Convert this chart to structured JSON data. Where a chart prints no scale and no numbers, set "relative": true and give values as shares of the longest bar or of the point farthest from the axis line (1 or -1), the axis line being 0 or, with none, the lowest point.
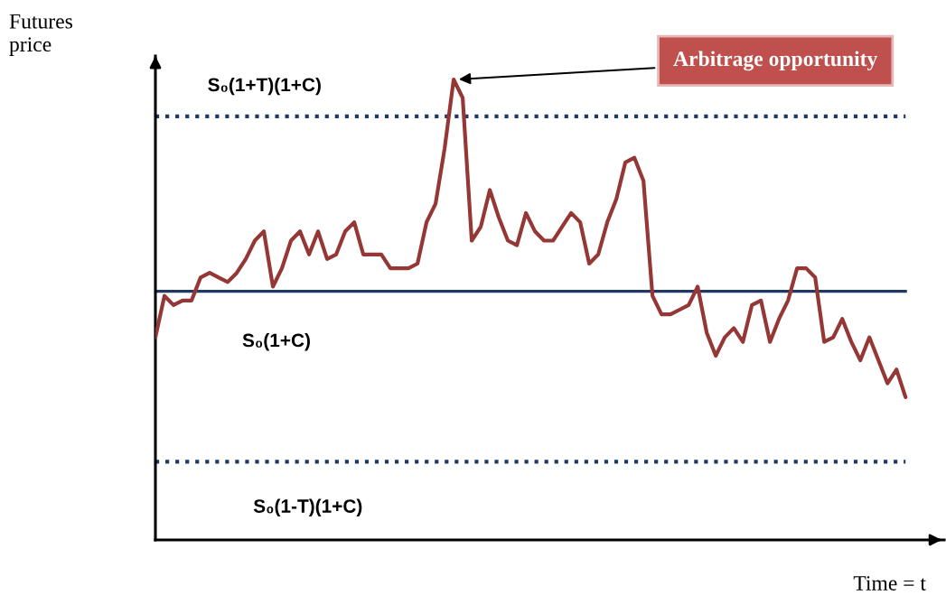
{
  "chart_data": {
    "type": "line",
    "relative": true,
    "xlabel": "Time = t",
    "ylabel": "Futures price",
    "color": "#953735",
    "line_style": "solid",
    "marker": "none",
    "categories": [
      null,
      null,
      null,
      null,
      null,
      null,
      null,
      null,
      null,
      null,
      null,
      null,
      null,
      null,
      null,
      null,
      null,
      null,
      null,
      null,
      null,
      null,
      null,
      null,
      null,
      null,
      null,
      null,
      null,
      null,
      null,
      null,
      null,
      null,
      null,
      null,
      null,
      null,
      null,
      null,
      null,
      null,
      null,
      null,
      null,
      null,
      null,
      null,
      null,
      null,
      null,
      null,
      null,
      null,
      null,
      null,
      null,
      null,
      null,
      null,
      null,
      null,
      null,
      null,
      null,
      null,
      null,
      null,
      null,
      null,
      null,
      null,
      null,
      null,
      null,
      null,
      null,
      null,
      null,
      null,
      null,
      null,
      null,
      null
    ],
    "values": [
      0.44,
      0.53,
      0.51,
      0.52,
      0.52,
      0.57,
      0.58,
      0.57,
      0.56,
      0.58,
      0.61,
      0.65,
      0.67,
      0.55,
      0.59,
      0.65,
      0.67,
      0.62,
      0.67,
      0.61,
      0.62,
      0.67,
      0.69,
      0.62,
      0.62,
      0.62,
      0.59,
      0.59,
      0.59,
      0.6,
      0.69,
      0.73,
      0.85,
      1.0,
      0.96,
      0.65,
      0.68,
      0.76,
      0.7,
      0.65,
      0.64,
      0.71,
      0.67,
      0.65,
      0.65,
      0.68,
      0.71,
      0.69,
      0.6,
      0.62,
      0.69,
      0.74,
      0.82,
      0.83,
      0.78,
      0.53,
      0.49,
      0.49,
      0.5,
      0.51,
      0.55,
      0.45,
      0.4,
      0.44,
      0.46,
      0.43,
      0.51,
      0.52,
      0.43,
      0.48,
      0.52,
      0.59,
      0.59,
      0.57,
      0.43,
      0.44,
      0.48,
      0.43,
      0.39,
      0.44,
      0.39,
      0.34,
      0.37,
      0.31
    ],
    "ref_lines": [
      {
        "axis": "y",
        "value": 0.92,
        "label": "S₀(1+T)(1+C)",
        "color": "#1f3864",
        "line_style": "dotted"
      },
      {
        "axis": "y",
        "value": 0.54,
        "label": "S₀(1+C)",
        "color": "#1f3864",
        "line_style": "solid"
      },
      {
        "axis": "y",
        "value": 0.17,
        "label": "S₀(1-T)(1+C)",
        "color": "#1f3864",
        "line_style": "dotted"
      }
    ],
    "annotations": [
      "Arbitrage opportunity"
    ]
  }
}
